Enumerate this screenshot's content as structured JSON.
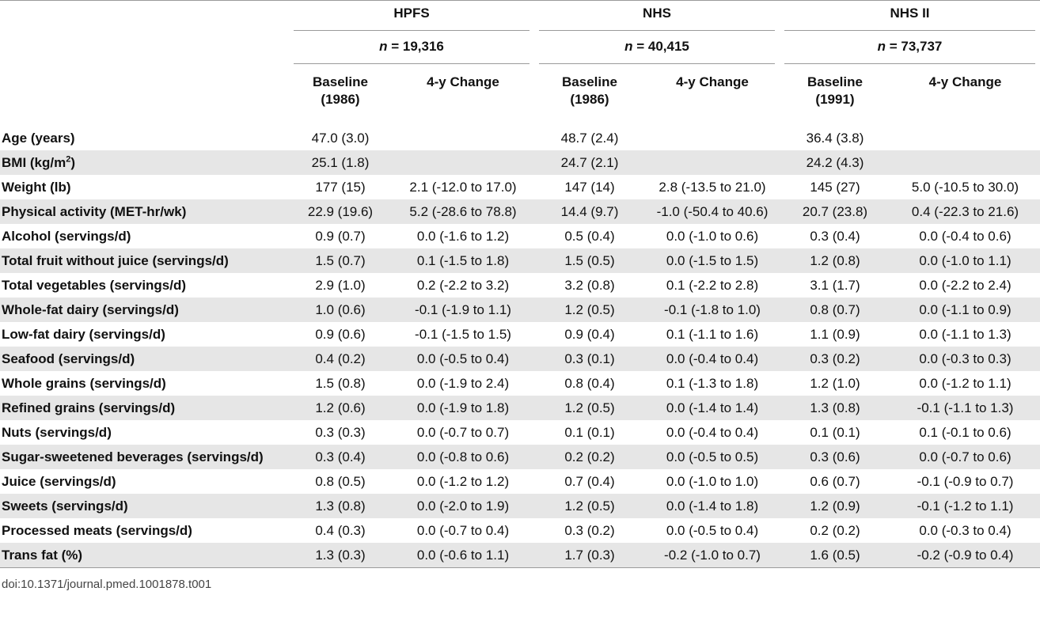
{
  "header": {
    "groups": [
      {
        "name": "HPFS",
        "n_label": "n",
        "n_value": "= 19,316"
      },
      {
        "name": "NHS",
        "n_label": "n",
        "n_value": "= 40,415"
      },
      {
        "name": "NHS II",
        "n_label": "n",
        "n_value": "= 73,737"
      }
    ],
    "sub": [
      {
        "line1": "Baseline",
        "line2": "(1986)"
      },
      {
        "line1": "4-y Change",
        "line2": ""
      },
      {
        "line1": "Baseline",
        "line2": "(1986)"
      },
      {
        "line1": "4-y Change",
        "line2": ""
      },
      {
        "line1": "Baseline",
        "line2": "(1991)"
      },
      {
        "line1": "4-y Change",
        "line2": ""
      }
    ]
  },
  "rows": [
    {
      "label": "Age (years)",
      "cells": [
        "47.0 (3.0)",
        "",
        "48.7 (2.4)",
        "",
        "36.4 (3.8)",
        ""
      ]
    },
    {
      "label": "BMI (kg/m",
      "sup": "2",
      "label_end": ")",
      "cells": [
        "25.1 (1.8)",
        "",
        "24.7 (2.1)",
        "",
        "24.2 (4.3)",
        ""
      ]
    },
    {
      "label": "Weight (lb)",
      "cells": [
        "177 (15)",
        "2.1 (-12.0 to 17.0)",
        "147 (14)",
        "2.8 (-13.5 to 21.0)",
        "145 (27)",
        "5.0 (-10.5 to 30.0)"
      ]
    },
    {
      "label": "Physical activity (MET-hr/wk)",
      "cells": [
        "22.9 (19.6)",
        "5.2 (-28.6 to 78.8)",
        "14.4 (9.7)",
        "-1.0 (-50.4 to 40.6)",
        "20.7 (23.8)",
        "0.4 (-22.3 to 21.6)"
      ]
    },
    {
      "label": "Alcohol (servings/d)",
      "cells": [
        "0.9 (0.7)",
        "0.0 (-1.6 to 1.2)",
        "0.5 (0.4)",
        "0.0 (-1.0 to 0.6)",
        "0.3 (0.4)",
        "0.0 (-0.4 to 0.6)"
      ]
    },
    {
      "label": "Total fruit without juice (servings/d)",
      "cells": [
        "1.5 (0.7)",
        "0.1 (-1.5 to 1.8)",
        "1.5 (0.5)",
        "0.0 (-1.5 to 1.5)",
        "1.2 (0.8)",
        "0.0 (-1.0 to 1.1)"
      ]
    },
    {
      "label": "Total vegetables (servings/d)",
      "cells": [
        "2.9 (1.0)",
        "0.2 (-2.2 to 3.2)",
        "3.2 (0.8)",
        "0.1 (-2.2 to 2.8)",
        "3.1 (1.7)",
        "0.0 (-2.2 to 2.4)"
      ]
    },
    {
      "label": "Whole-fat dairy (servings/d)",
      "cells": [
        "1.0 (0.6)",
        "-0.1 (-1.9 to 1.1)",
        "1.2 (0.5)",
        "-0.1 (-1.8 to 1.0)",
        "0.8 (0.7)",
        "0.0 (-1.1 to 0.9)"
      ]
    },
    {
      "label": "Low-fat dairy (servings/d)",
      "cells": [
        "0.9 (0.6)",
        "-0.1 (-1.5 to 1.5)",
        "0.9 (0.4)",
        "0.1 (-1.1 to 1.6)",
        "1.1 (0.9)",
        "0.0 (-1.1 to 1.3)"
      ]
    },
    {
      "label": "Seafood (servings/d)",
      "cells": [
        "0.4 (0.2)",
        "0.0 (-0.5 to 0.4)",
        "0.3 (0.1)",
        "0.0 (-0.4 to 0.4)",
        "0.3 (0.2)",
        "0.0 (-0.3 to 0.3)"
      ]
    },
    {
      "label": "Whole grains (servings/d)",
      "cells": [
        "1.5 (0.8)",
        "0.0 (-1.9 to 2.4)",
        "0.8 (0.4)",
        "0.1 (-1.3 to 1.8)",
        "1.2 (1.0)",
        "0.0 (-1.2 to 1.1)"
      ]
    },
    {
      "label": "Refined grains (servings/d)",
      "cells": [
        "1.2 (0.6)",
        "0.0 (-1.9 to 1.8)",
        "1.2 (0.5)",
        "0.0 (-1.4 to 1.4)",
        "1.3 (0.8)",
        "-0.1 (-1.1 to 1.3)"
      ]
    },
    {
      "label": "Nuts (servings/d)",
      "cells": [
        "0.3 (0.3)",
        "0.0 (-0.7 to 0.7)",
        "0.1 (0.1)",
        "0.0 (-0.4 to 0.4)",
        "0.1 (0.1)",
        "0.1 (-0.1 to 0.6)"
      ]
    },
    {
      "label": "Sugar-sweetened beverages (servings/d)",
      "cells": [
        "0.3 (0.4)",
        "0.0 (-0.8 to 0.6)",
        "0.2 (0.2)",
        "0.0 (-0.5 to 0.5)",
        "0.3 (0.6)",
        "0.0 (-0.7 to 0.6)"
      ]
    },
    {
      "label": "Juice (servings/d)",
      "cells": [
        "0.8 (0.5)",
        "0.0 (-1.2 to 1.2)",
        "0.7 (0.4)",
        "0.0 (-1.0 to 1.0)",
        "0.6 (0.7)",
        "-0.1 (-0.9 to 0.7)"
      ]
    },
    {
      "label": "Sweets (servings/d)",
      "cells": [
        "1.3 (0.8)",
        "0.0 (-2.0 to 1.9)",
        "1.2 (0.5)",
        "0.0 (-1.4 to 1.8)",
        "1.2 (0.9)",
        "-0.1 (-1.2 to 1.1)"
      ]
    },
    {
      "label": "Processed meats (servings/d)",
      "cells": [
        "0.4 (0.3)",
        "0.0 (-0.7 to 0.4)",
        "0.3 (0.2)",
        "0.0 (-0.5 to 0.4)",
        "0.2 (0.2)",
        "0.0 (-0.3 to 0.4)"
      ]
    },
    {
      "label": "Trans fat (%)",
      "cells": [
        "1.3 (0.3)",
        "0.0 (-0.6 to 1.1)",
        "1.7 (0.3)",
        "-0.2 (-1.0 to 0.7)",
        "1.6 (0.5)",
        "-0.2 (-0.9 to 0.4)"
      ]
    }
  ],
  "footer": {
    "doi": "doi:10.1371/journal.pmed.1001878.t001"
  },
  "colors": {
    "shade": "#e6e6e6",
    "rule": "#9a9a9a",
    "text": "#111111"
  }
}
